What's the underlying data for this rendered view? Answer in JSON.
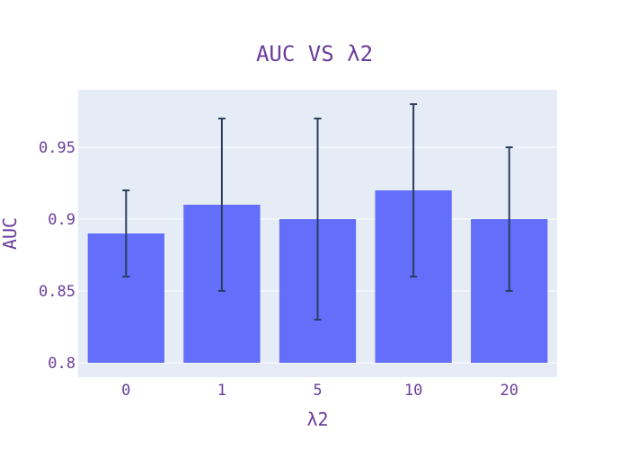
{
  "chart_data": {
    "type": "bar",
    "title": "AUC VS λ2",
    "xlabel": "λ2",
    "ylabel": "AUC",
    "categories": [
      "0",
      "1",
      "5",
      "10",
      "20"
    ],
    "values": [
      0.89,
      0.91,
      0.9,
      0.92,
      0.9
    ],
    "error_low": [
      0.86,
      0.85,
      0.83,
      0.86,
      0.85
    ],
    "error_high": [
      0.92,
      0.97,
      0.97,
      0.98,
      0.95
    ],
    "ylim": [
      0.79,
      0.99
    ],
    "yticks": [
      "0.8",
      "0.85",
      "0.9",
      "0.95"
    ],
    "ytick_values": [
      0.8,
      0.85,
      0.9,
      0.95
    ],
    "grid": true,
    "colors": {
      "bar": "#636efa",
      "error_bar": "#2a3f5f",
      "plot_bg": "#e5ecf6",
      "text": "#6a3d9a",
      "grid": "#ffffff"
    }
  }
}
